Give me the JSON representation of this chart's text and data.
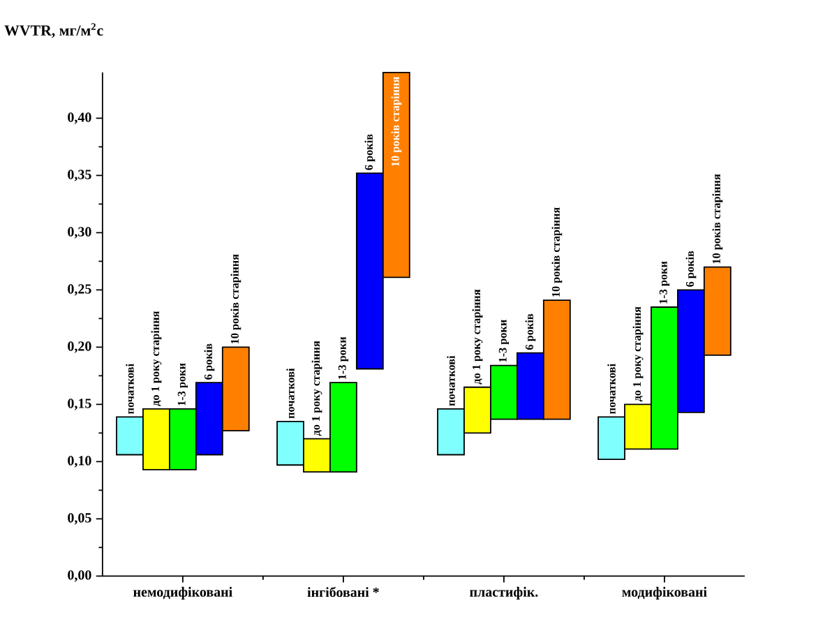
{
  "chart_data": {
    "type": "bar",
    "ylabel": "WVTR, мг/м$^{2}$с",
    "categories": [
      "немодифіковані",
      "інгібовані *",
      "пластифік.",
      "модифіковані"
    ],
    "series": [
      {
        "name": "початкові",
        "color": "#80ffff",
        "base": [
          0.106,
          0.097,
          0.106,
          0.102
        ],
        "values": [
          0.033,
          0.038,
          0.04,
          0.037
        ]
      },
      {
        "name": "до 1 року старіння",
        "color": "#ffff00",
        "base": [
          0.093,
          0.091,
          0.125,
          0.111
        ],
        "values": [
          0.053,
          0.029,
          0.04,
          0.039
        ]
      },
      {
        "name": "1-3 роки",
        "color": "#00ff00",
        "base": [
          0.093,
          0.091,
          0.137,
          0.111
        ],
        "values": [
          0.053,
          0.078,
          0.047,
          0.124
        ]
      },
      {
        "name": "6 років",
        "color": "#0000ff",
        "base": [
          0.106,
          0.181,
          0.137,
          0.143
        ],
        "values": [
          0.063,
          0.171,
          0.058,
          0.107
        ]
      },
      {
        "name": "10 років старіння",
        "color": "#ff8000",
        "base": [
          0.127,
          0.261,
          0.137,
          0.193
        ],
        "values": [
          0.073,
          0.179,
          0.104,
          0.077
        ]
      }
    ],
    "ylim": [
      0,
      0.44
    ],
    "yticks": [
      {
        "value": 0,
        "label": "0,00"
      },
      {
        "value": 0.05,
        "label": "0,05"
      },
      {
        "value": 0.1,
        "label": "0,10"
      },
      {
        "value": 0.15,
        "label": "0,15"
      },
      {
        "value": 0.2,
        "label": "0,20"
      },
      {
        "value": 0.25,
        "label": "0,25"
      },
      {
        "value": 0.3,
        "label": "0,30"
      },
      {
        "value": 0.35,
        "label": "0,35"
      },
      {
        "value": 0.4,
        "label": "0,40"
      }
    ]
  }
}
